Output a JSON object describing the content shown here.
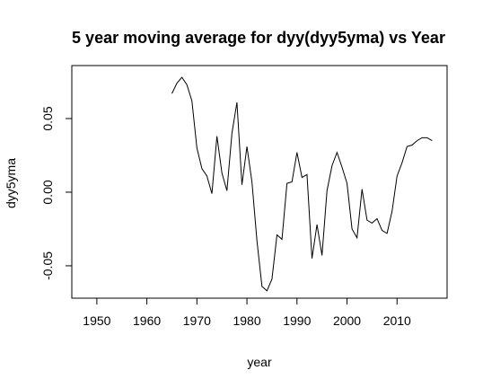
{
  "chart_data": {
    "type": "line",
    "title": "5 year moving average for dyy(dyy5yma) vs Year",
    "xlabel": "year",
    "ylabel": "dyy5yma",
    "xlim": [
      1945,
      2020
    ],
    "ylim": [
      -0.072,
      0.086
    ],
    "x_ticks": [
      1950,
      1960,
      1970,
      1980,
      1990,
      2000,
      2010
    ],
    "x_tick_labels": [
      "1950",
      "1960",
      "1970",
      "1980",
      "1990",
      "2000",
      "2010"
    ],
    "y_ticks": [
      -0.05,
      0.0,
      0.05
    ],
    "y_tick_labels": [
      "-0.05",
      "0.00",
      "0.05"
    ],
    "grid": false,
    "legend": "none",
    "line_color": "#000000",
    "series": [
      {
        "x": [
          1965,
          1966,
          1967,
          1968,
          1969,
          1970,
          1971,
          1972,
          1973,
          1974,
          1975,
          1976,
          1977,
          1978,
          1979,
          1980,
          1981,
          1982,
          1983,
          1984,
          1985,
          1986,
          1987,
          1988,
          1989,
          1990,
          1991,
          1992,
          1993,
          1994,
          1995,
          1996,
          1997,
          1998,
          1999,
          2000,
          2001,
          2002,
          2003,
          2004,
          2005,
          2006,
          2007,
          2008,
          2009,
          2010,
          2011,
          2012,
          2013,
          2014,
          2015,
          2016,
          2017
        ],
        "values": [
          0.067,
          0.074,
          0.078,
          0.073,
          0.062,
          0.03,
          0.016,
          0.011,
          -0.001,
          0.038,
          0.013,
          0.001,
          0.04,
          0.061,
          0.005,
          0.031,
          0.007,
          -0.033,
          -0.064,
          -0.067,
          -0.059,
          -0.029,
          -0.032,
          0.006,
          0.007,
          0.027,
          0.01,
          0.012,
          -0.045,
          -0.022,
          -0.043,
          0.001,
          0.018,
          0.027,
          0.017,
          0.006,
          -0.025,
          -0.031,
          0.002,
          -0.019,
          -0.021,
          -0.018,
          -0.026,
          -0.028,
          -0.013,
          0.011,
          0.02,
          0.031,
          0.032,
          0.035,
          0.037,
          0.037,
          0.035
        ]
      }
    ]
  }
}
